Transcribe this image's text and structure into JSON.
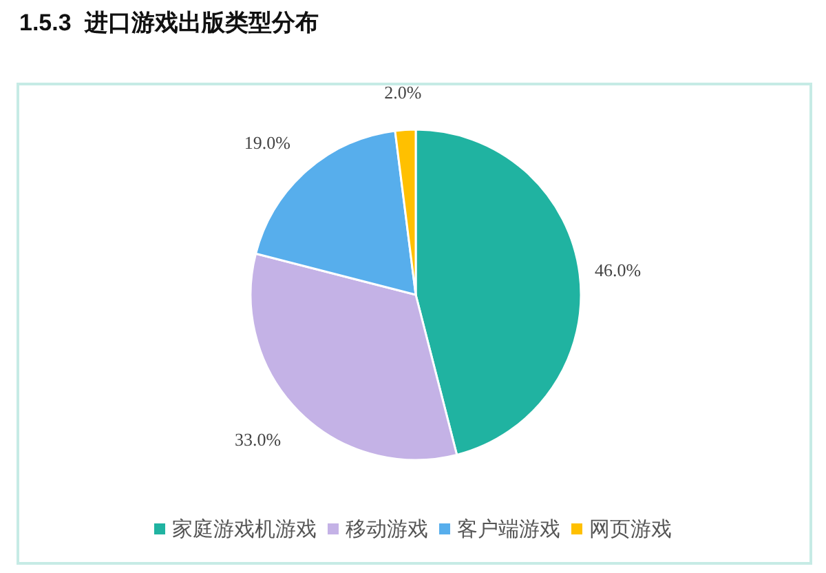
{
  "chart_data": {
    "type": "pie",
    "title": "1.5.3  进口游戏出版类型分布",
    "categories": [
      "家庭游戏机游戏",
      "移动游戏",
      "客户端游戏",
      "网页游戏"
    ],
    "values": [
      46,
      33,
      19,
      2
    ],
    "colors": [
      "#20b3a1",
      "#c4b2e6",
      "#57aeec",
      "#ffc000"
    ],
    "value_labels": [
      "46.0%",
      "33.0%",
      "19.0%",
      "2.0%"
    ],
    "legend": "bottom"
  }
}
